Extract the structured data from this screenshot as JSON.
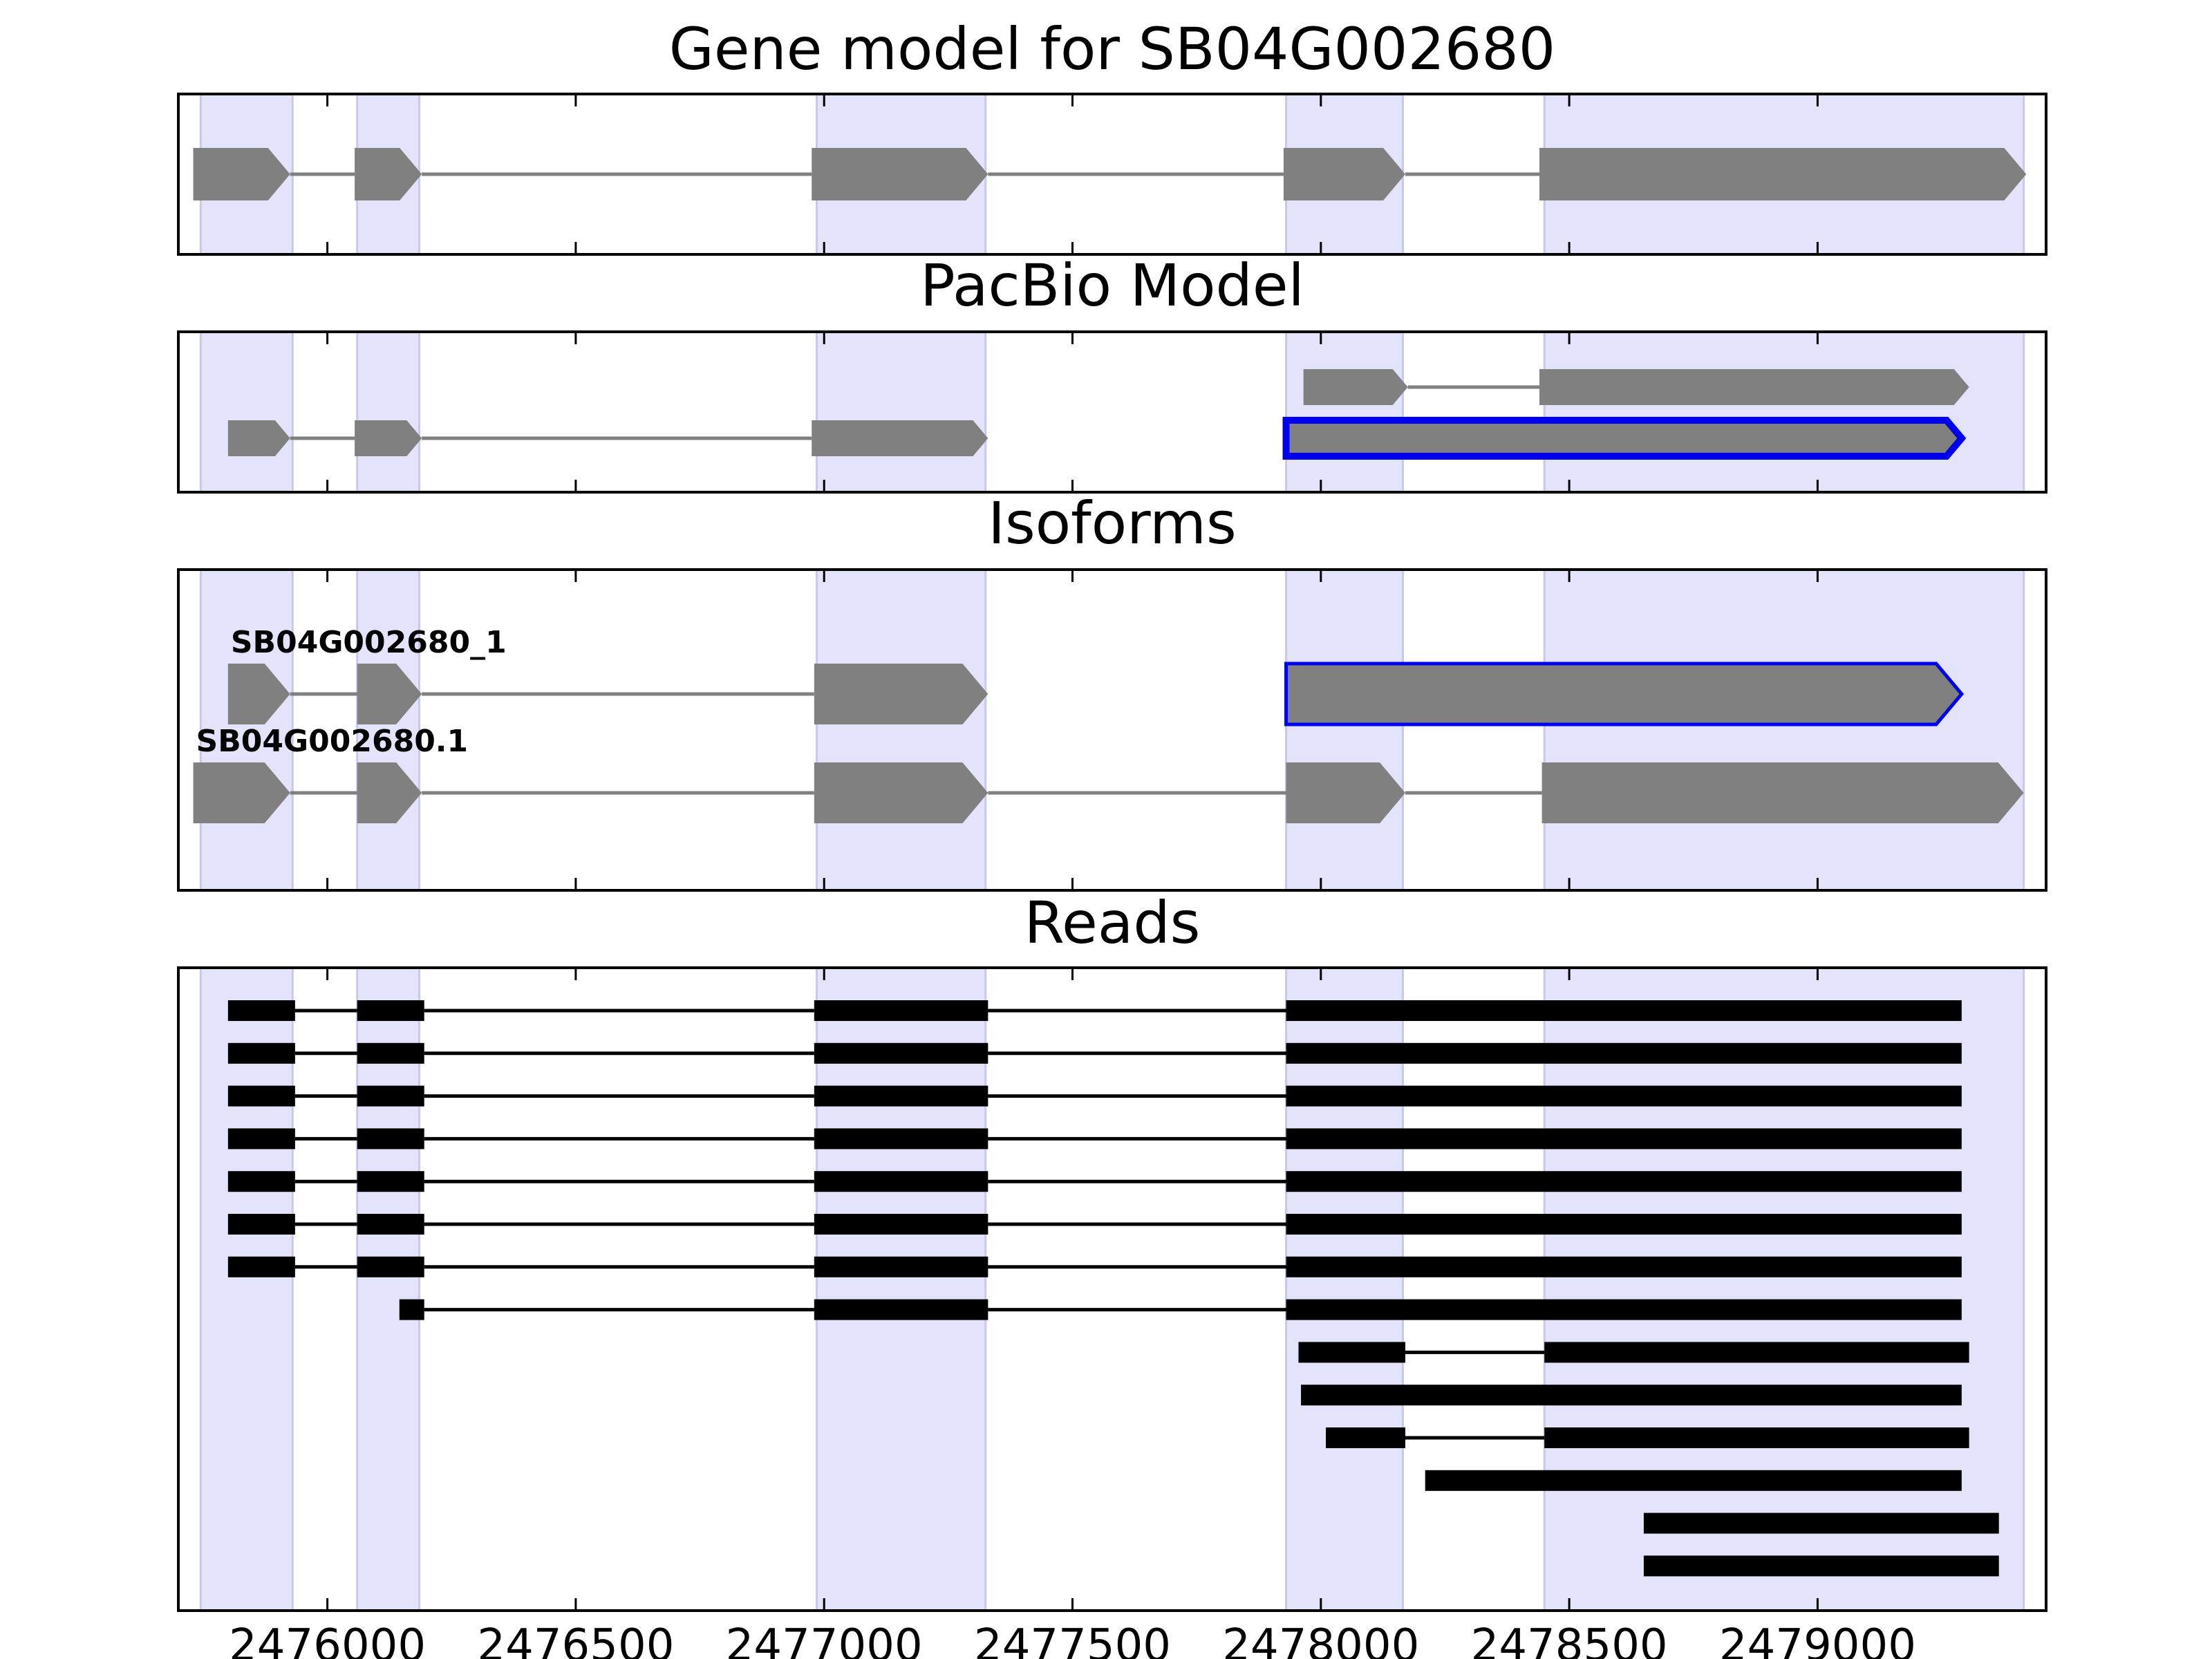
{
  "chart_data": {
    "type": "gene-model",
    "x_ticks": [
      2476000,
      2476500,
      2477000,
      2477500,
      2478000,
      2478500,
      2479000
    ],
    "xlim": [
      2475700,
      2479460
    ],
    "highlight_color": "#e3e3fb",
    "feature_color": "#808080",
    "selected_color": "#0000ee",
    "read_color": "#000000",
    "exon_regions": [
      [
        2475745,
        2475930
      ],
      [
        2476060,
        2476185
      ],
      [
        2476985,
        2477325
      ],
      [
        2477930,
        2478165
      ],
      [
        2478450,
        2479415
      ]
    ],
    "panels": [
      {
        "id": "gene-model",
        "title": "Gene model for SB04G002680",
        "rows": 1,
        "tracks": [
          {
            "row": 0,
            "label": "",
            "selected": false,
            "exons": [
              [
                2475730,
                2475925
              ],
              [
                2476055,
                2476190
              ],
              [
                2476975,
                2477330
              ],
              [
                2477925,
                2478170
              ],
              [
                2478440,
                2479420
              ]
            ]
          }
        ]
      },
      {
        "id": "pacbio-model",
        "title": "PacBio Model",
        "rows": 2,
        "tracks": [
          {
            "row": 0,
            "label": "",
            "selected": false,
            "exons": [
              [
                2477965,
                2478175
              ],
              [
                2478440,
                2479305
              ]
            ]
          },
          {
            "row": 1,
            "label": "",
            "selected": false,
            "exons": [
              [
                2475800,
                2475925
              ],
              [
                2476055,
                2476190
              ],
              [
                2476975,
                2477330
              ]
            ]
          },
          {
            "row": 1,
            "label": "",
            "selected": true,
            "exons": [
              [
                2477930,
                2479290
              ]
            ]
          }
        ]
      },
      {
        "id": "isoforms",
        "title": "Isoforms",
        "rows": 2,
        "tracks": [
          {
            "row": 0,
            "label": "SB04G002680_1",
            "selected": false,
            "exons": [
              [
                2475800,
                2475925
              ],
              [
                2476060,
                2476190
              ],
              [
                2476980,
                2477330
              ]
            ]
          },
          {
            "row": 0,
            "label": "",
            "selected": true,
            "exons": [
              [
                2477930,
                2479290
              ]
            ]
          },
          {
            "row": 1,
            "label": "SB04G002680.1",
            "selected": false,
            "exons": [
              [
                2475730,
                2475925
              ],
              [
                2476060,
                2476190
              ],
              [
                2476980,
                2477330
              ],
              [
                2477930,
                2478170
              ],
              [
                2478445,
                2479415
              ]
            ]
          }
        ]
      },
      {
        "id": "reads",
        "title": "Reads",
        "rows": 14,
        "reads": [
          [
            [
              2475800,
              2475935
            ],
            [
              2476060,
              2476195
            ],
            [
              2476980,
              2477330
            ],
            [
              2477930,
              2479290
            ]
          ],
          [
            [
              2475800,
              2475935
            ],
            [
              2476060,
              2476195
            ],
            [
              2476980,
              2477330
            ],
            [
              2477930,
              2479290
            ]
          ],
          [
            [
              2475800,
              2475935
            ],
            [
              2476060,
              2476195
            ],
            [
              2476980,
              2477330
            ],
            [
              2477930,
              2479290
            ]
          ],
          [
            [
              2475800,
              2475935
            ],
            [
              2476060,
              2476195
            ],
            [
              2476980,
              2477330
            ],
            [
              2477930,
              2479290
            ]
          ],
          [
            [
              2475800,
              2475935
            ],
            [
              2476060,
              2476195
            ],
            [
              2476980,
              2477330
            ],
            [
              2477930,
              2479290
            ]
          ],
          [
            [
              2475800,
              2475935
            ],
            [
              2476060,
              2476195
            ],
            [
              2476980,
              2477330
            ],
            [
              2477930,
              2479290
            ]
          ],
          [
            [
              2475800,
              2475935
            ],
            [
              2476060,
              2476195
            ],
            [
              2476980,
              2477330
            ],
            [
              2477930,
              2479290
            ]
          ],
          [
            [
              2476145,
              2476195
            ],
            [
              2476980,
              2477330
            ],
            [
              2477930,
              2479290
            ]
          ],
          [
            [
              2477955,
              2478170
            ],
            [
              2478450,
              2479305
            ]
          ],
          [
            [
              2477960,
              2479290
            ]
          ],
          [
            [
              2478010,
              2478170
            ],
            [
              2478450,
              2479305
            ]
          ],
          [
            [
              2478210,
              2479290
            ]
          ],
          [
            [
              2478650,
              2479365
            ]
          ],
          [
            [
              2478650,
              2479365
            ]
          ]
        ]
      }
    ]
  }
}
